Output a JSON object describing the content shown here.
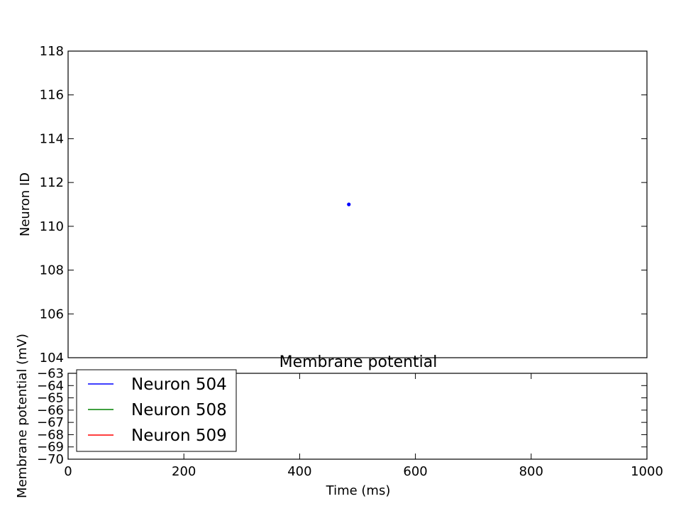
{
  "chart_data": [
    {
      "type": "scatter",
      "ylabel": "Neuron ID",
      "xlim": [
        0,
        1000
      ],
      "ylim": [
        104,
        118
      ],
      "yticks": [
        "104",
        "106",
        "108",
        "110",
        "112",
        "114",
        "116",
        "118"
      ],
      "points": [
        {
          "x": 485,
          "y": 111
        }
      ],
      "color": "#0000ff",
      "grid": false
    },
    {
      "type": "line",
      "title": "Membrane potential",
      "xlabel": "Time (ms)",
      "ylabel": "Membrane potential (mV)",
      "xlim": [
        0,
        1000
      ],
      "ylim": [
        -70,
        -63
      ],
      "xticks": [
        "0",
        "200",
        "400",
        "600",
        "800",
        "1000"
      ],
      "yticks": [
        "−70",
        "−69",
        "−68",
        "−67",
        "−66",
        "−65",
        "−64",
        "−63"
      ],
      "legend_position": "upper-left",
      "grid": false,
      "series": [
        {
          "name": "Neuron 504",
          "color": "#0000ff",
          "values": []
        },
        {
          "name": "Neuron 508",
          "color": "#008000",
          "values": []
        },
        {
          "name": "Neuron 509",
          "color": "#ff0000",
          "values": []
        }
      ]
    }
  ]
}
